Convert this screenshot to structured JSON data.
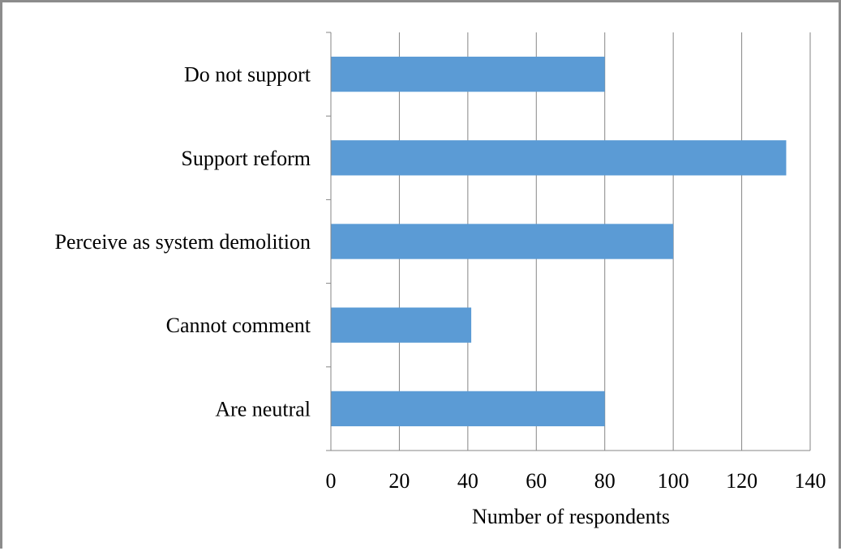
{
  "chart_data": {
    "type": "bar",
    "orientation": "horizontal",
    "categories": [
      "Do not support",
      "Support reform",
      "Perceive as system demolition",
      "Cannot comment",
      "Are neutral"
    ],
    "values": [
      80,
      133,
      100,
      41,
      80
    ],
    "xlabel": "Number of respondents",
    "xlim": [
      0,
      140
    ],
    "xticks": [
      0,
      20,
      40,
      60,
      80,
      100,
      120,
      140
    ],
    "grid": "vertical",
    "bar_color": "#5b9bd5"
  }
}
